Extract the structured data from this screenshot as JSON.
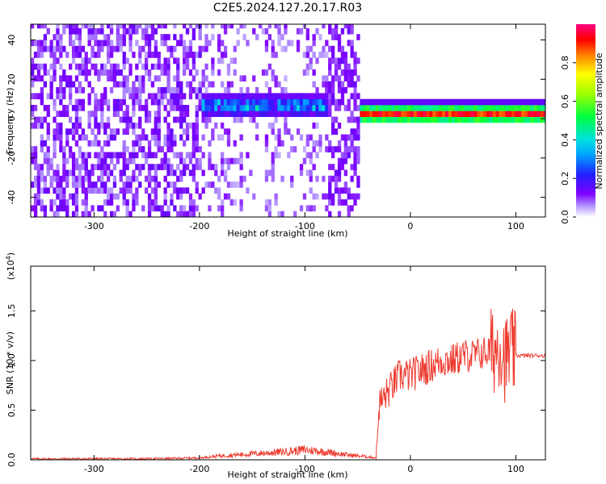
{
  "title": "C2E5.2024.127.20.17.R03",
  "colors": {
    "snr_line": "#ee3b2f",
    "spectrogram_low": "#7f00ff",
    "spectrogram_high": "#ff0000",
    "axes": "#000000"
  },
  "chart_data": [
    {
      "type": "heatmap",
      "xlabel": "Height of straight line (km)",
      "ylabel": "Frequency (Hz)",
      "xlim": [
        -360,
        128
      ],
      "ylim": [
        -50,
        48
      ],
      "xticks": [
        -300,
        -200,
        -100,
        0,
        100
      ],
      "yticks": [
        -40,
        -20,
        0,
        20,
        40
      ],
      "colorbar": {
        "label": "Normalized spectral amplitude",
        "range": [
          0.0,
          1.0
        ],
        "ticks": [
          0.0,
          0.2,
          0.4,
          0.6,
          0.8
        ],
        "colormap": "rainbow (violet to red)"
      },
      "regions": [
        {
          "x_range": [
            -360,
            -200
          ],
          "description_level": 0.1,
          "frequency_center": 0
        },
        {
          "x_range": [
            -200,
            -80
          ],
          "frequency_center": 5,
          "peak_amplitude": 0.45
        },
        {
          "x_range": [
            -50,
            128
          ],
          "frequency_center": 1.5,
          "peak_amplitude": 0.95
        }
      ]
    },
    {
      "type": "line",
      "xlabel": "Height of straight line (km)",
      "ylabel": "SNR (10 * v/v)",
      "yscale_label": "(x10^4)",
      "xlim": [
        -360,
        128
      ],
      "ylim": [
        0.0,
        1.95
      ],
      "xticks": [
        -300,
        -200,
        -100,
        0,
        100
      ],
      "yticks": [
        0.0,
        0.5,
        1.0,
        1.5
      ],
      "series": [
        {
          "x": [
            -360,
            -300,
            -250,
            -200,
            -180,
            -150,
            -120,
            -100,
            -80,
            -60,
            -40,
            -32,
            -30,
            -20,
            -10,
            0,
            10,
            20,
            30,
            40,
            50,
            60,
            70,
            80,
            85,
            90,
            95,
            100,
            110,
            120,
            128
          ],
          "y": [
            0.01,
            0.01,
            0.01,
            0.02,
            0.04,
            0.06,
            0.08,
            0.1,
            0.08,
            0.05,
            0.03,
            0.02,
            0.55,
            0.7,
            0.85,
            0.85,
            0.9,
            0.95,
            1.0,
            1.0,
            1.05,
            1.05,
            1.08,
            1.1,
            1.2,
            1.0,
            1.1,
            1.05,
            1.05,
            1.05,
            1.05
          ]
        }
      ]
    }
  ]
}
